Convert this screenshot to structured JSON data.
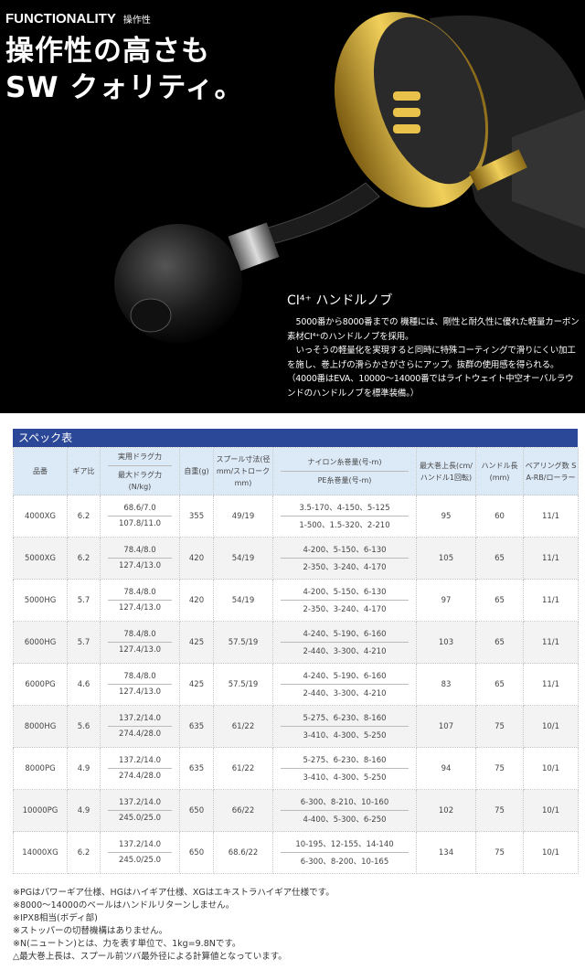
{
  "hero": {
    "kicker": "FUNCTIONALITY",
    "kicker_sub": "操作性",
    "headline_line1": "操作性の高さも",
    "headline_line2": "SW クォリティ。",
    "caption_title": "CI⁴⁺ ハンドルノブ",
    "caption_p1": "5000番から8000番までの 機種には、剛性と耐久性に優れた軽量カーボン素材CI⁴⁺のハンドルノブを採用。",
    "caption_p2": "いっそうの軽量化を実現すると同時に特殊コーティングで滑りにくい加工を施し、巻上げの滑らかさがさらにアップ。抜群の使用感を得られる。",
    "caption_p3": "（4000番はEVA、10000～14000番ではライトウェイト中空オーバルラウンドのハンドルノブを標準装備。）"
  },
  "spec": {
    "title": "スペック表",
    "headers": {
      "model": "品番",
      "gear": "ギア比",
      "drag_top": "実用ドラグ力",
      "drag_bottom": "最大ドラグ力",
      "drag_unit": "(N/kg)",
      "weight": "自重(g)",
      "spool": "スプール寸法(径mm/ストローク mm)",
      "line_top": "ナイロン糸巻量(号-m)",
      "line_bottom": "PE糸巻量(号-m)",
      "retrieve": "最大巻上長(cm/ハンドル1回転)",
      "handle": "ハンドル長(mm)",
      "bearing": "ベアリング数 S A-RB/ローラー"
    },
    "rows": [
      {
        "model": "4000XG",
        "gear": "6.2",
        "drag1": "68.6/7.0",
        "drag2": "107.8/11.0",
        "weight": "355",
        "spool": "49/19",
        "nylon": "3.5-170、4-150、5-125",
        "pe": "1-500、1.5-320、2-210",
        "retrieve": "95",
        "handle": "60",
        "bearing": "11/1"
      },
      {
        "model": "5000XG",
        "gear": "6.2",
        "drag1": "78.4/8.0",
        "drag2": "127.4/13.0",
        "weight": "420",
        "spool": "54/19",
        "nylon": "4-200、5-150、6-130",
        "pe": "2-350、3-240、4-170",
        "retrieve": "105",
        "handle": "65",
        "bearing": "11/1"
      },
      {
        "model": "5000HG",
        "gear": "5.7",
        "drag1": "78.4/8.0",
        "drag2": "127.4/13.0",
        "weight": "420",
        "spool": "54/19",
        "nylon": "4-200、5-150、6-130",
        "pe": "2-350、3-240、4-170",
        "retrieve": "97",
        "handle": "65",
        "bearing": "11/1"
      },
      {
        "model": "6000HG",
        "gear": "5.7",
        "drag1": "78.4/8.0",
        "drag2": "127.4/13.0",
        "weight": "425",
        "spool": "57.5/19",
        "nylon": "4-240、5-190、6-160",
        "pe": "2-440、3-300、4-210",
        "retrieve": "103",
        "handle": "65",
        "bearing": "11/1"
      },
      {
        "model": "6000PG",
        "gear": "4.6",
        "drag1": "78.4/8.0",
        "drag2": "127.4/13.0",
        "weight": "425",
        "spool": "57.5/19",
        "nylon": "4-240、5-190、6-160",
        "pe": "2-440、3-300、4-210",
        "retrieve": "83",
        "handle": "65",
        "bearing": "11/1"
      },
      {
        "model": "8000HG",
        "gear": "5.6",
        "drag1": "137.2/14.0",
        "drag2": "274.4/28.0",
        "weight": "635",
        "spool": "61/22",
        "nylon": "5-275、6-230、8-160",
        "pe": "3-410、4-300、5-250",
        "retrieve": "107",
        "handle": "75",
        "bearing": "10/1"
      },
      {
        "model": "8000PG",
        "gear": "4.9",
        "drag1": "137.2/14.0",
        "drag2": "274.4/28.0",
        "weight": "635",
        "spool": "61/22",
        "nylon": "5-275、6-230、8-160",
        "pe": "3-410、4-300、5-250",
        "retrieve": "94",
        "handle": "75",
        "bearing": "10/1"
      },
      {
        "model": "10000PG",
        "gear": "4.9",
        "drag1": "137.2/14.0",
        "drag2": "245.0/25.0",
        "weight": "650",
        "spool": "66/22",
        "nylon": "6-300、8-210、10-160",
        "pe": "4-400、5-300、6-250",
        "retrieve": "102",
        "handle": "75",
        "bearing": "10/1"
      },
      {
        "model": "14000XG",
        "gear": "6.2",
        "drag1": "137.2/14.0",
        "drag2": "245.0/25.0",
        "weight": "650",
        "spool": "68.6/22",
        "nylon": "10-195、12-155、14-140",
        "pe": "6-300、8-200、10-165",
        "retrieve": "134",
        "handle": "75",
        "bearing": "10/1"
      }
    ]
  },
  "notes": [
    "※PGはパワーギア仕様、HGはハイギア仕様、XGはエキストラハイギア仕様です。",
    "※8000～14000のベールはハンドルリターンしません。",
    "※IPX8相当(ボディ部)",
    "※ストッパーの切替機構はありません。",
    "※N(ニュートン)とは、力を表す単位で、1kg=9.8Nです。",
    "△最大巻上長は、スプール前ツバ最外径による計算値となっています。"
  ],
  "colors": {
    "bar": "#2b4898",
    "header_bg": "#dce9f7",
    "gold": "#c9a227"
  }
}
